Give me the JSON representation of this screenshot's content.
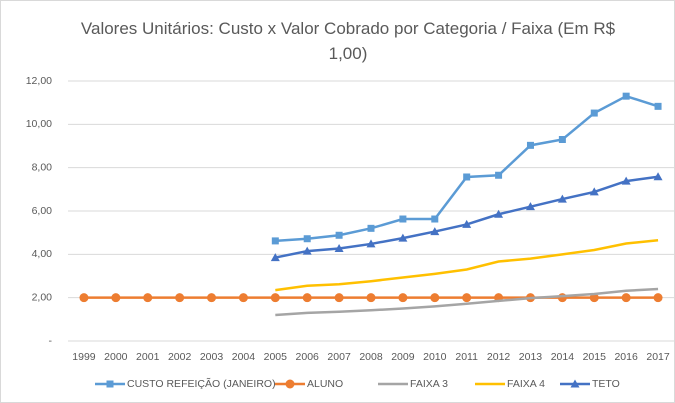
{
  "chart_data": {
    "type": "line",
    "title": "Valores Unitários: Custo x Valor Cobrado por Categoria / Faixa (Em R$ 1,00)",
    "categories": [
      "1999",
      "2000",
      "2001",
      "2002",
      "2003",
      "2004",
      "2005",
      "2006",
      "2007",
      "2008",
      "2009",
      "2010",
      "2011",
      "2012",
      "2013",
      "2014",
      "2015",
      "2016",
      "2017"
    ],
    "series": [
      {
        "name": "CUSTO REFEIÇÃO (JANEIRO)",
        "color": "#5b9bd5",
        "marker": "square",
        "values": [
          null,
          null,
          null,
          null,
          null,
          null,
          4.62,
          4.72,
          4.88,
          5.2,
          5.63,
          5.63,
          7.57,
          7.65,
          9.03,
          9.3,
          10.52,
          11.3,
          10.83
        ]
      },
      {
        "name": "ALUNO",
        "color": "#ed7d31",
        "marker": "circle",
        "values": [
          2,
          2,
          2,
          2,
          2,
          2,
          2,
          2,
          2,
          2,
          2,
          2,
          2,
          2,
          2,
          2,
          2,
          2,
          2
        ]
      },
      {
        "name": "FAIXA 3",
        "color": "#a5a5a5",
        "marker": "none",
        "values": [
          null,
          null,
          null,
          null,
          null,
          null,
          1.2,
          1.3,
          1.35,
          1.42,
          1.5,
          1.6,
          1.72,
          1.85,
          1.98,
          2.07,
          2.17,
          2.32,
          2.4
        ]
      },
      {
        "name": "FAIXA 4",
        "color": "#ffc000",
        "marker": "none",
        "values": [
          null,
          null,
          null,
          null,
          null,
          null,
          2.35,
          2.55,
          2.62,
          2.76,
          2.93,
          3.1,
          3.3,
          3.67,
          3.8,
          4.0,
          4.2,
          4.5,
          4.65
        ]
      },
      {
        "name": "TETO",
        "color": "#4472c4",
        "marker": "triangle",
        "values": [
          null,
          null,
          null,
          null,
          null,
          null,
          3.85,
          4.15,
          4.27,
          4.48,
          4.75,
          5.05,
          5.38,
          5.85,
          6.2,
          6.55,
          6.88,
          7.38,
          7.58
        ]
      }
    ],
    "ylim": [
      0,
      12
    ],
    "yticks": [
      {
        "value": 0,
        "label": "-"
      },
      {
        "value": 2,
        "label": "2,00"
      },
      {
        "value": 4,
        "label": "4,00"
      },
      {
        "value": 6,
        "label": "6,00"
      },
      {
        "value": 8,
        "label": "8,00"
      },
      {
        "value": 10,
        "label": "10,00"
      },
      {
        "value": 12,
        "label": "12,00"
      }
    ],
    "grid": true,
    "legend": "bottom"
  }
}
